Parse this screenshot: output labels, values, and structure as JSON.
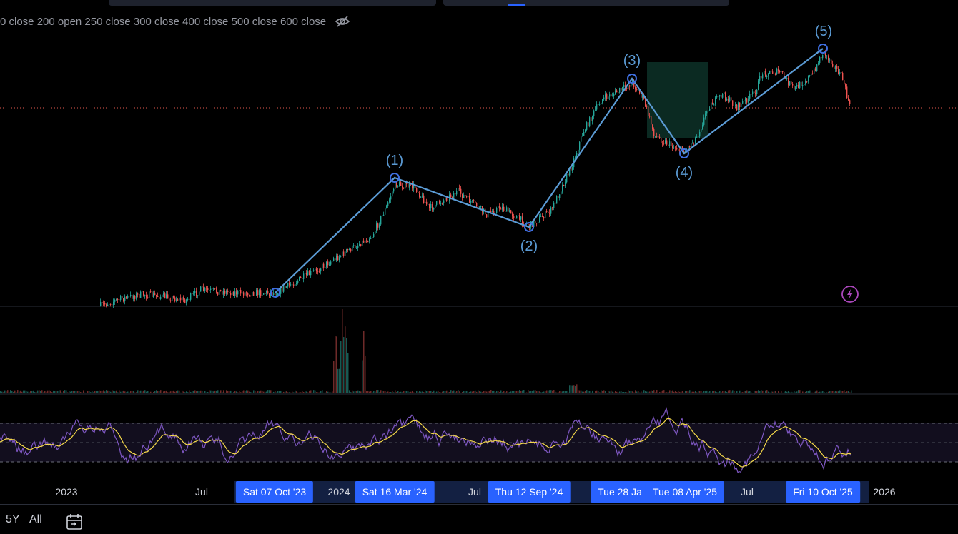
{
  "legend": {
    "text": "0 close 200 open 250 close 300 close 400 close 500 close 600 close",
    "visibility_icon": "eye-off-icon"
  },
  "wave_labels": [
    "(1)",
    "(2)",
    "(3)",
    "(4)",
    "(5)"
  ],
  "time_axis": {
    "labels": [
      "2023",
      "Jul",
      "2024",
      "Jul",
      "Jul",
      "2026"
    ],
    "highlighted": [
      "Sat 07 Oct '23",
      "Sat 16 Mar '24",
      "Thu 12 Sep '24",
      "Tue 28 Ja",
      "Tue 08 Apr '25",
      "Fri 10 Oct '25"
    ]
  },
  "bottom_bar": {
    "range_5y": "5Y",
    "range_all": "All",
    "calendar_icon": "calendar-goto-icon"
  },
  "colors": {
    "background": "#000000",
    "wave_line": "#5b9bd5",
    "up_candle": "#26a69a",
    "down_candle": "#ef5350",
    "rsi_line": "#7e57c2",
    "rsi_ma": "#f5d94a",
    "highlight": "#2962ff",
    "box_fill": "#0b2a22",
    "indicator_icon": "#ab47bc"
  },
  "icons": [
    "eye-off-icon",
    "lightning-icon",
    "calendar-goto-icon"
  ]
}
